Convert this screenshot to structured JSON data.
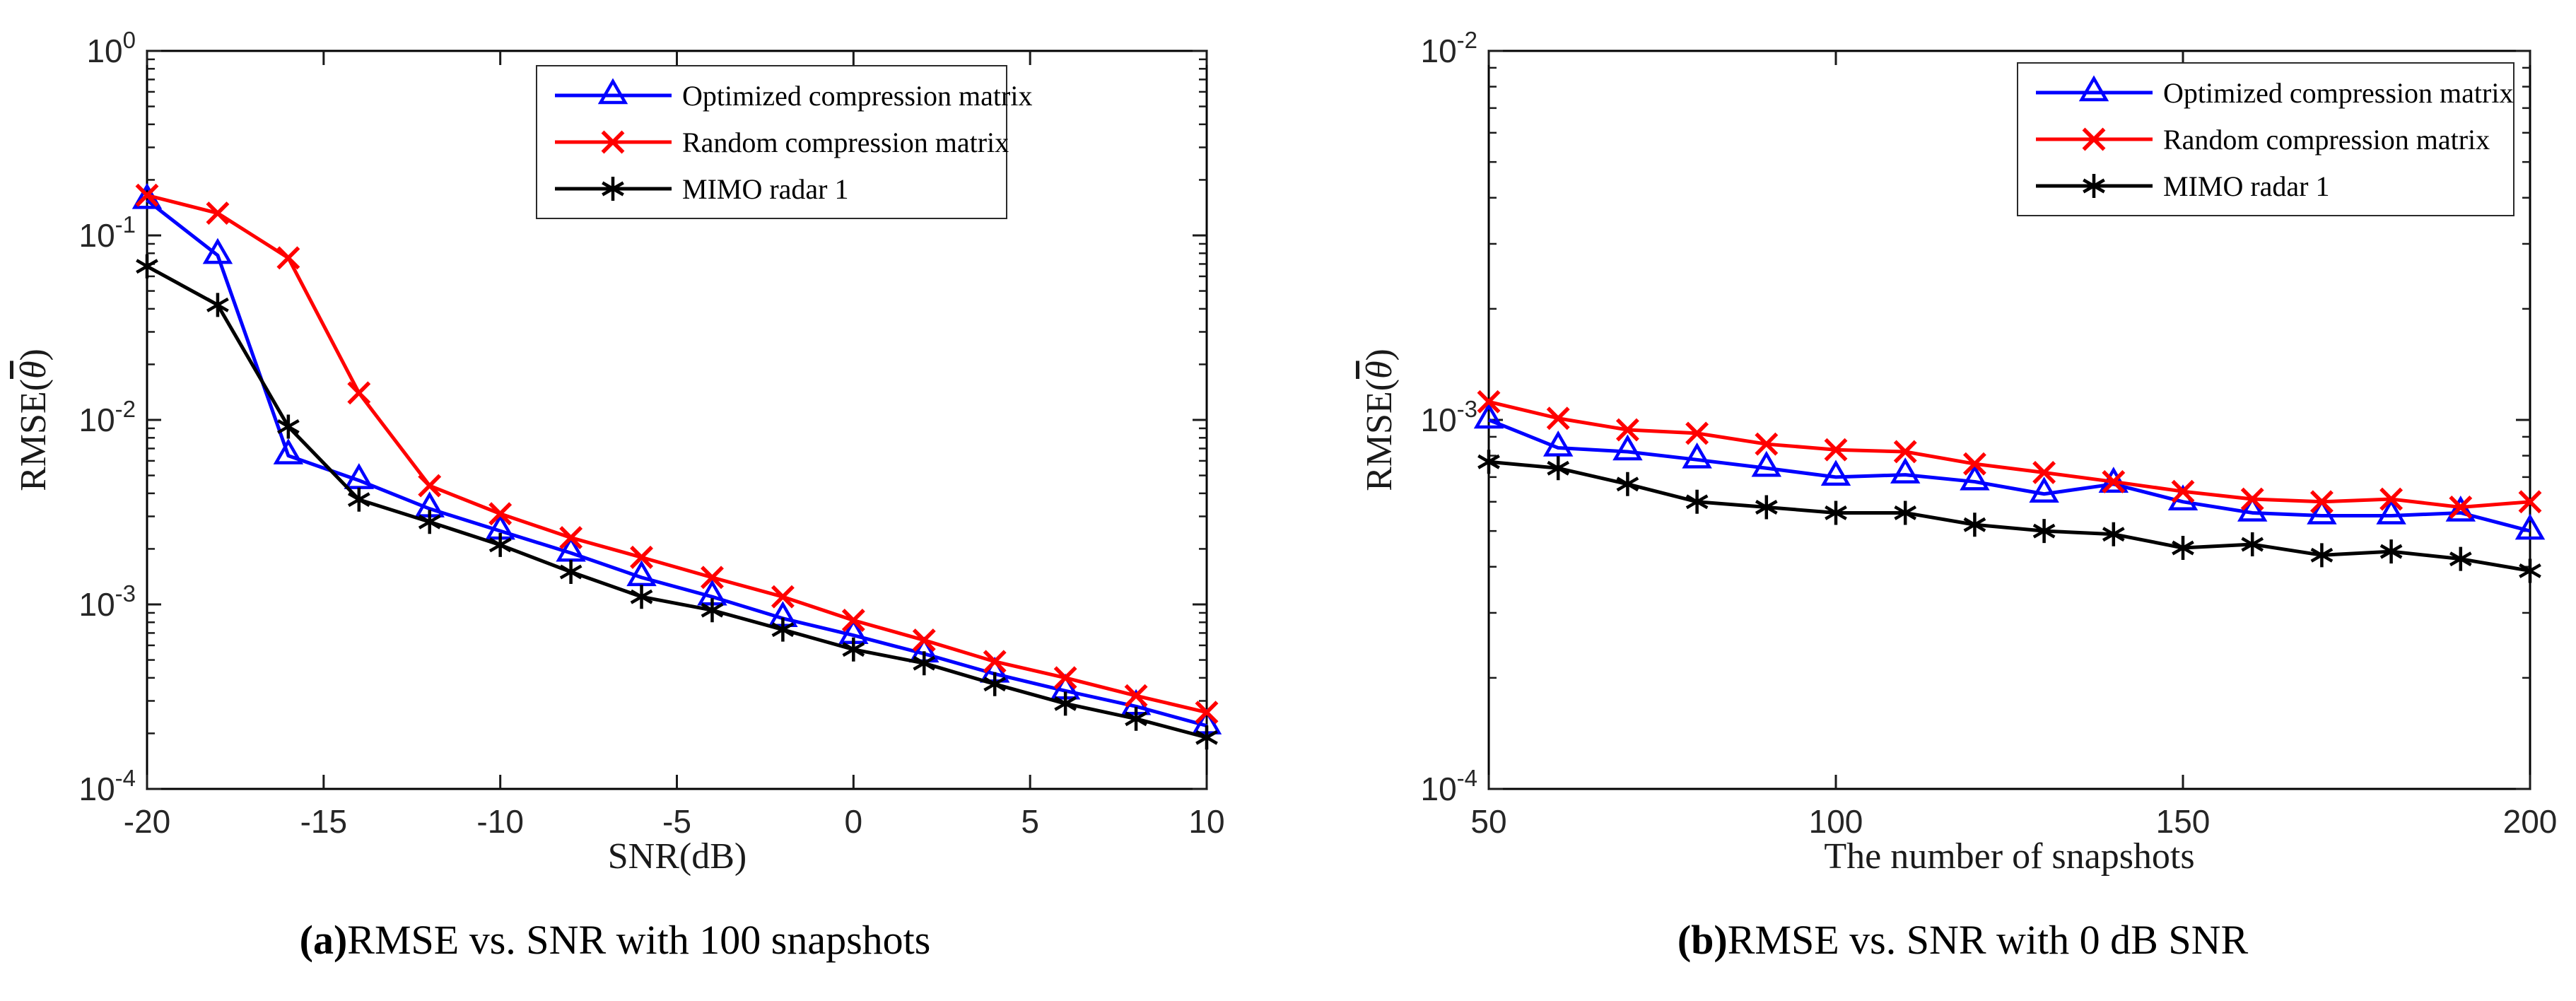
{
  "page": {
    "background": "#ffffff",
    "axis_color": "#262626",
    "frame_color": "#000000"
  },
  "chart_data": [
    {
      "id": "a",
      "type": "line",
      "caption_prefix": "(a)",
      "caption_text": "RMSE vs. SNR with 100 snapshots",
      "xlabel": "SNR(dB)",
      "ylabel_pre": "RMSE(",
      "ylabel_theta": "θ",
      "ylabel_post": ")",
      "yscale": "log",
      "grid": false,
      "legend_position": "top-right-inside",
      "xlim": [
        -20,
        10
      ],
      "ylim": [
        0.0001,
        1
      ],
      "xticks": [
        -20,
        -15,
        -10,
        -5,
        0,
        5,
        10
      ],
      "ytick_exponents": [
        0,
        -1,
        -2,
        -3,
        -4
      ],
      "x": [
        -20,
        -18,
        -16,
        -14,
        -12,
        -10,
        -8,
        -6,
        -4,
        -2,
        0,
        2,
        4,
        6,
        8,
        10
      ],
      "series": [
        {
          "name": "Optimized compression matrix",
          "color": "#0000ff",
          "marker": "triangle-up",
          "values": [
            0.155,
            0.078,
            0.0064,
            0.0047,
            0.0033,
            0.0025,
            0.0019,
            0.0014,
            0.0011,
            0.00084,
            0.00068,
            0.00054,
            0.00042,
            0.00034,
            0.00028,
            0.00022
          ]
        },
        {
          "name": "Random compression matrix",
          "color": "#ff0000",
          "marker": "x",
          "values": [
            0.165,
            0.132,
            0.0755,
            0.014,
            0.0044,
            0.0031,
            0.0023,
            0.0018,
            0.0014,
            0.0011,
            0.00082,
            0.00064,
            0.00049,
            0.0004,
            0.00032,
            0.00026
          ]
        },
        {
          "name": "MIMO radar 1",
          "color": "#000000",
          "marker": "asterisk",
          "values": [
            0.068,
            0.042,
            0.0092,
            0.0037,
            0.0028,
            0.0021,
            0.0015,
            0.0011,
            0.00093,
            0.00073,
            0.00057,
            0.00048,
            0.00037,
            0.00029,
            0.00024,
            0.00019
          ]
        }
      ]
    },
    {
      "id": "b",
      "type": "line",
      "caption_prefix": "(b)",
      "caption_text": "RMSE vs. SNR with 0 dB SNR",
      "xlabel": "The number of snapshots",
      "ylabel_pre": "RMSE(",
      "ylabel_theta": "θ",
      "ylabel_post": ")",
      "yscale": "log",
      "grid": false,
      "legend_position": "top-right-inside",
      "xlim": [
        50,
        200
      ],
      "ylim": [
        0.0001,
        0.01
      ],
      "xticks": [
        50,
        100,
        150,
        200
      ],
      "ytick_exponents": [
        -2,
        -3,
        -4
      ],
      "x": [
        50,
        60,
        70,
        80,
        90,
        100,
        110,
        120,
        130,
        140,
        150,
        160,
        170,
        180,
        190,
        200
      ],
      "series": [
        {
          "name": "Optimized compression matrix",
          "color": "#0000ff",
          "marker": "triangle-up",
          "values": [
            0.001,
            0.00084,
            0.00082,
            0.00078,
            0.00074,
            0.0007,
            0.00071,
            0.00068,
            0.00063,
            0.00067,
            0.0006,
            0.00056,
            0.00055,
            0.00055,
            0.00056,
            0.0005
          ]
        },
        {
          "name": "Random compression matrix",
          "color": "#ff0000",
          "marker": "x",
          "values": [
            0.00112,
            0.00101,
            0.00094,
            0.00092,
            0.00086,
            0.00083,
            0.00082,
            0.00076,
            0.00072,
            0.00068,
            0.00064,
            0.00061,
            0.0006,
            0.00061,
            0.00058,
            0.0006
          ]
        },
        {
          "name": "MIMO radar 1",
          "color": "#000000",
          "marker": "asterisk",
          "values": [
            0.00077,
            0.00074,
            0.00067,
            0.0006,
            0.00058,
            0.00056,
            0.00056,
            0.00052,
            0.0005,
            0.00049,
            0.00045,
            0.00046,
            0.00043,
            0.00044,
            0.00042,
            0.00039
          ]
        }
      ]
    }
  ]
}
